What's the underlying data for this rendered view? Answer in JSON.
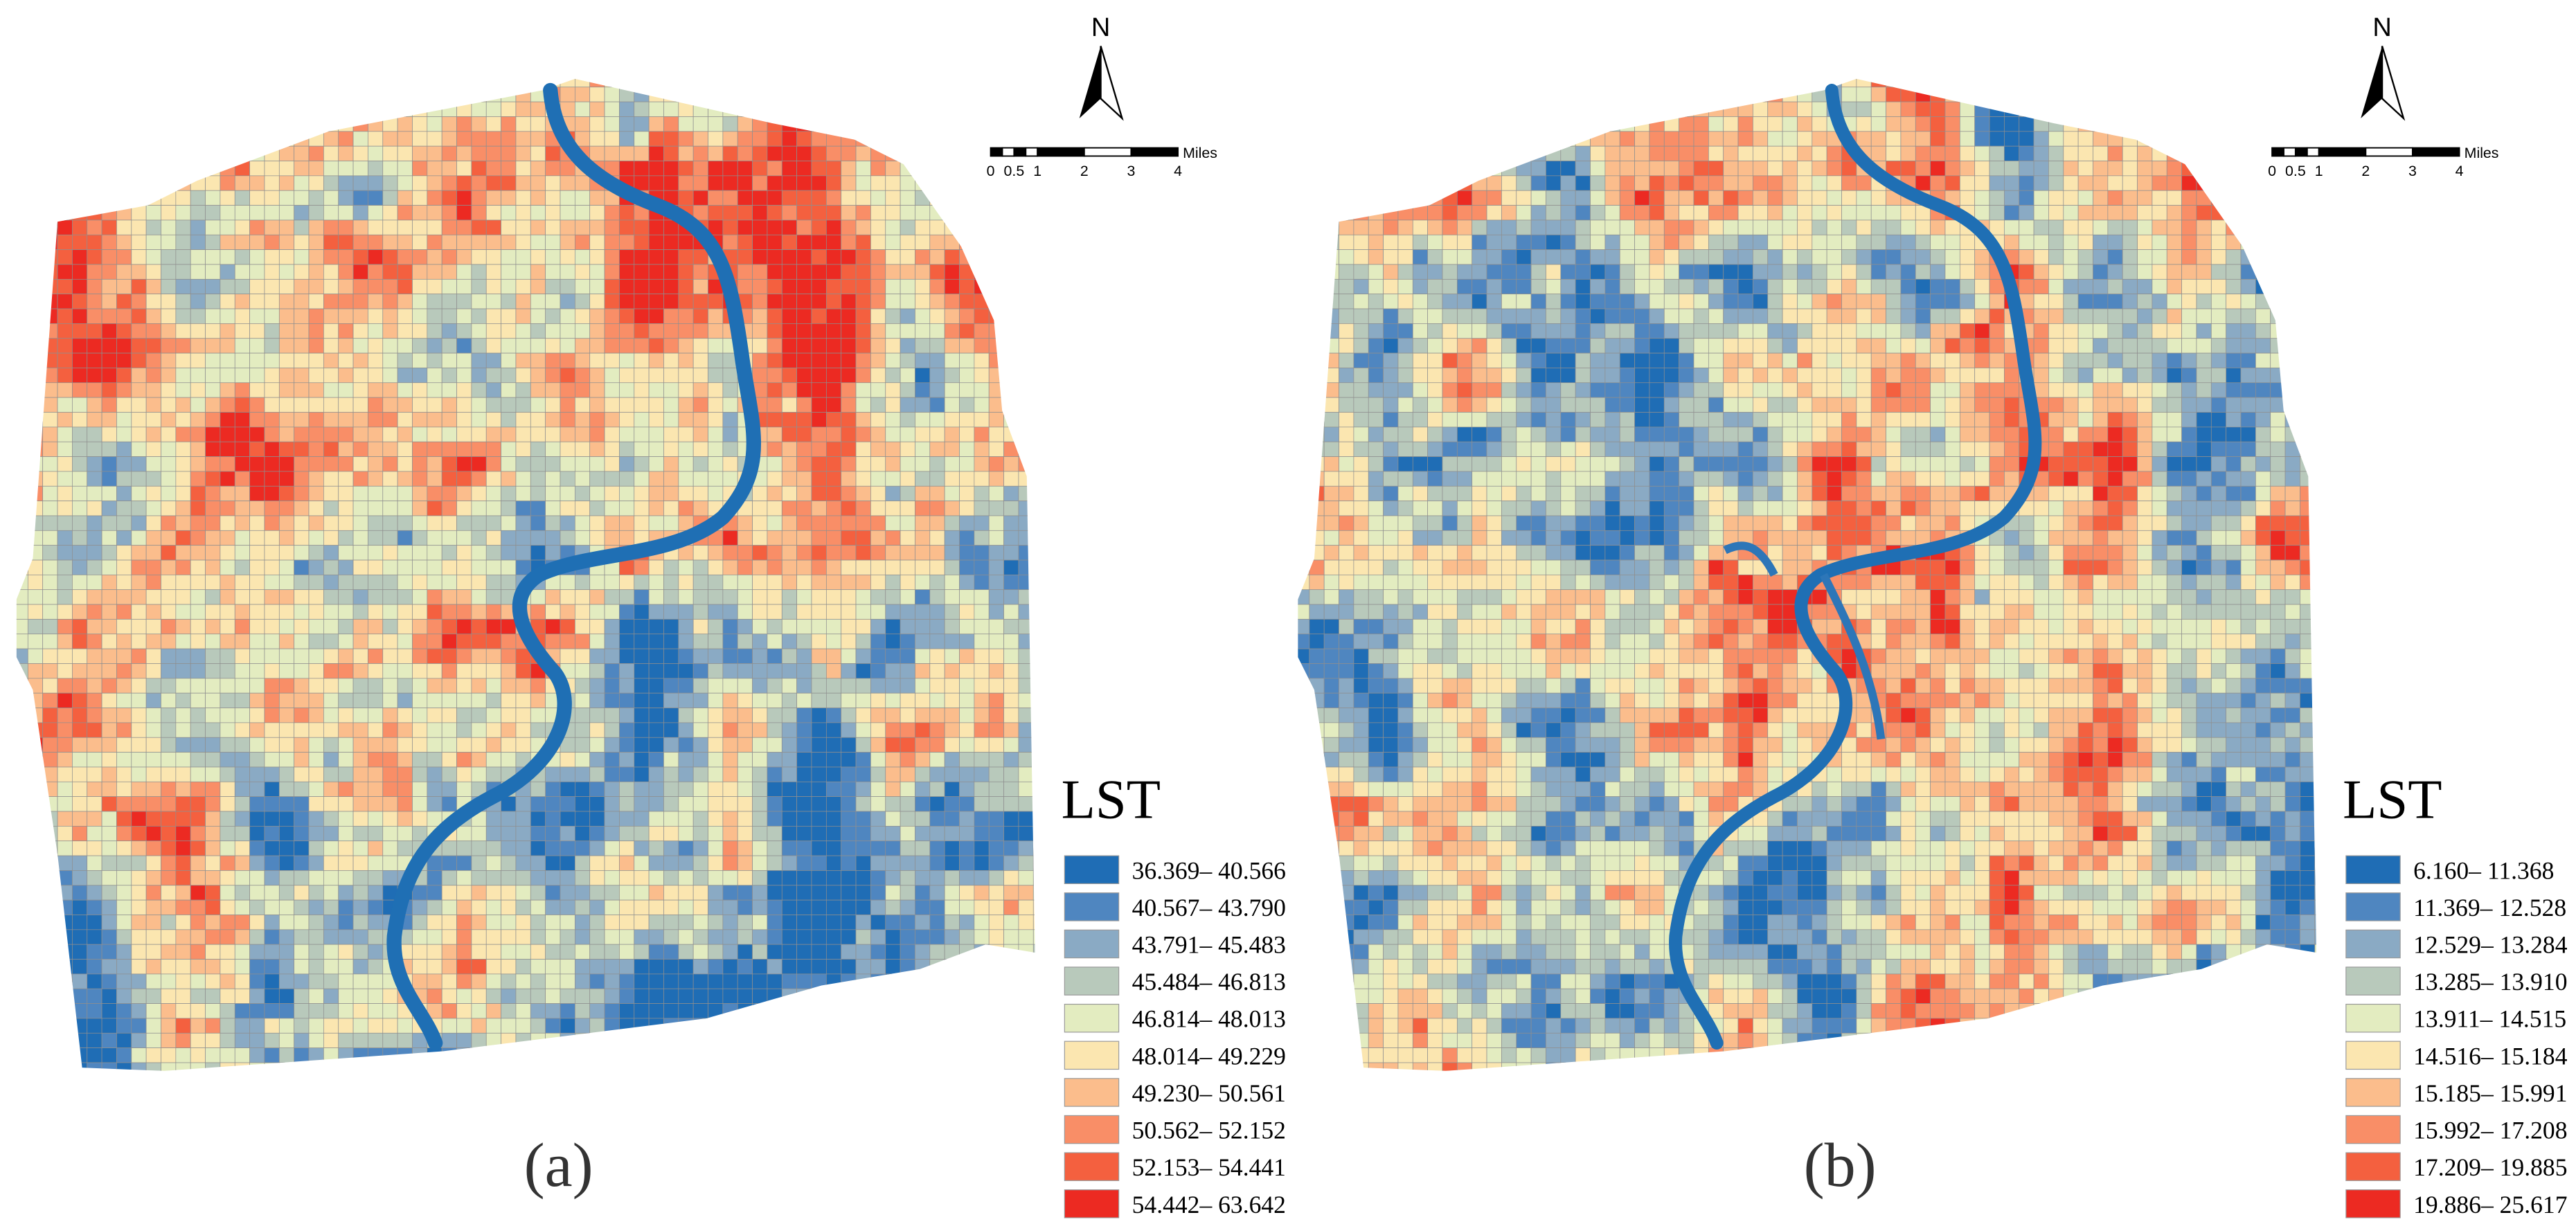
{
  "panels": [
    {
      "label": "(a)",
      "north": "N",
      "scale": {
        "ticks": [
          0,
          0.5,
          1,
          2,
          3,
          4
        ],
        "unit": "Miles"
      },
      "legend": {
        "title": "LST",
        "items": [
          {
            "label": "36.369– 40.566",
            "color": "#1f6db5"
          },
          {
            "label": "40.567– 43.790",
            "color": "#4f86c0"
          },
          {
            "label": "43.791– 45.483",
            "color": "#8aaac4"
          },
          {
            "label": "45.484– 46.813",
            "color": "#b8c9bb"
          },
          {
            "label": "46.814– 48.013",
            "color": "#e3ecc0"
          },
          {
            "label": "48.014– 49.229",
            "color": "#fbe6b0"
          },
          {
            "label": "49.230– 50.561",
            "color": "#fbbd8c"
          },
          {
            "label": "50.562– 52.152",
            "color": "#f98e67"
          },
          {
            "label": "52.153– 54.441",
            "color": "#f4603f"
          },
          {
            "label": "54.442– 63.642",
            "color": "#ec2a22"
          }
        ]
      }
    },
    {
      "label": "(b)",
      "north": "N",
      "scale": {
        "ticks": [
          0,
          0.5,
          1,
          2,
          3,
          4
        ],
        "unit": "Miles"
      },
      "legend": {
        "title": "LST",
        "items": [
          {
            "label": "6.160– 11.368",
            "color": "#1f6db5"
          },
          {
            "label": "11.369– 12.528",
            "color": "#4f86c0"
          },
          {
            "label": "12.529– 13.284",
            "color": "#8aaac4"
          },
          {
            "label": "13.285– 13.910",
            "color": "#b8c9bb"
          },
          {
            "label": "13.911– 14.515",
            "color": "#e3ecc0"
          },
          {
            "label": "14.516– 15.184",
            "color": "#fbe6b0"
          },
          {
            "label": "15.185– 15.991",
            "color": "#fbbd8c"
          },
          {
            "label": "15.992– 17.208",
            "color": "#f98e67"
          },
          {
            "label": "17.209– 19.885",
            "color": "#f4603f"
          },
          {
            "label": "19.886– 25.617",
            "color": "#ec2a22"
          }
        ]
      }
    }
  ]
}
